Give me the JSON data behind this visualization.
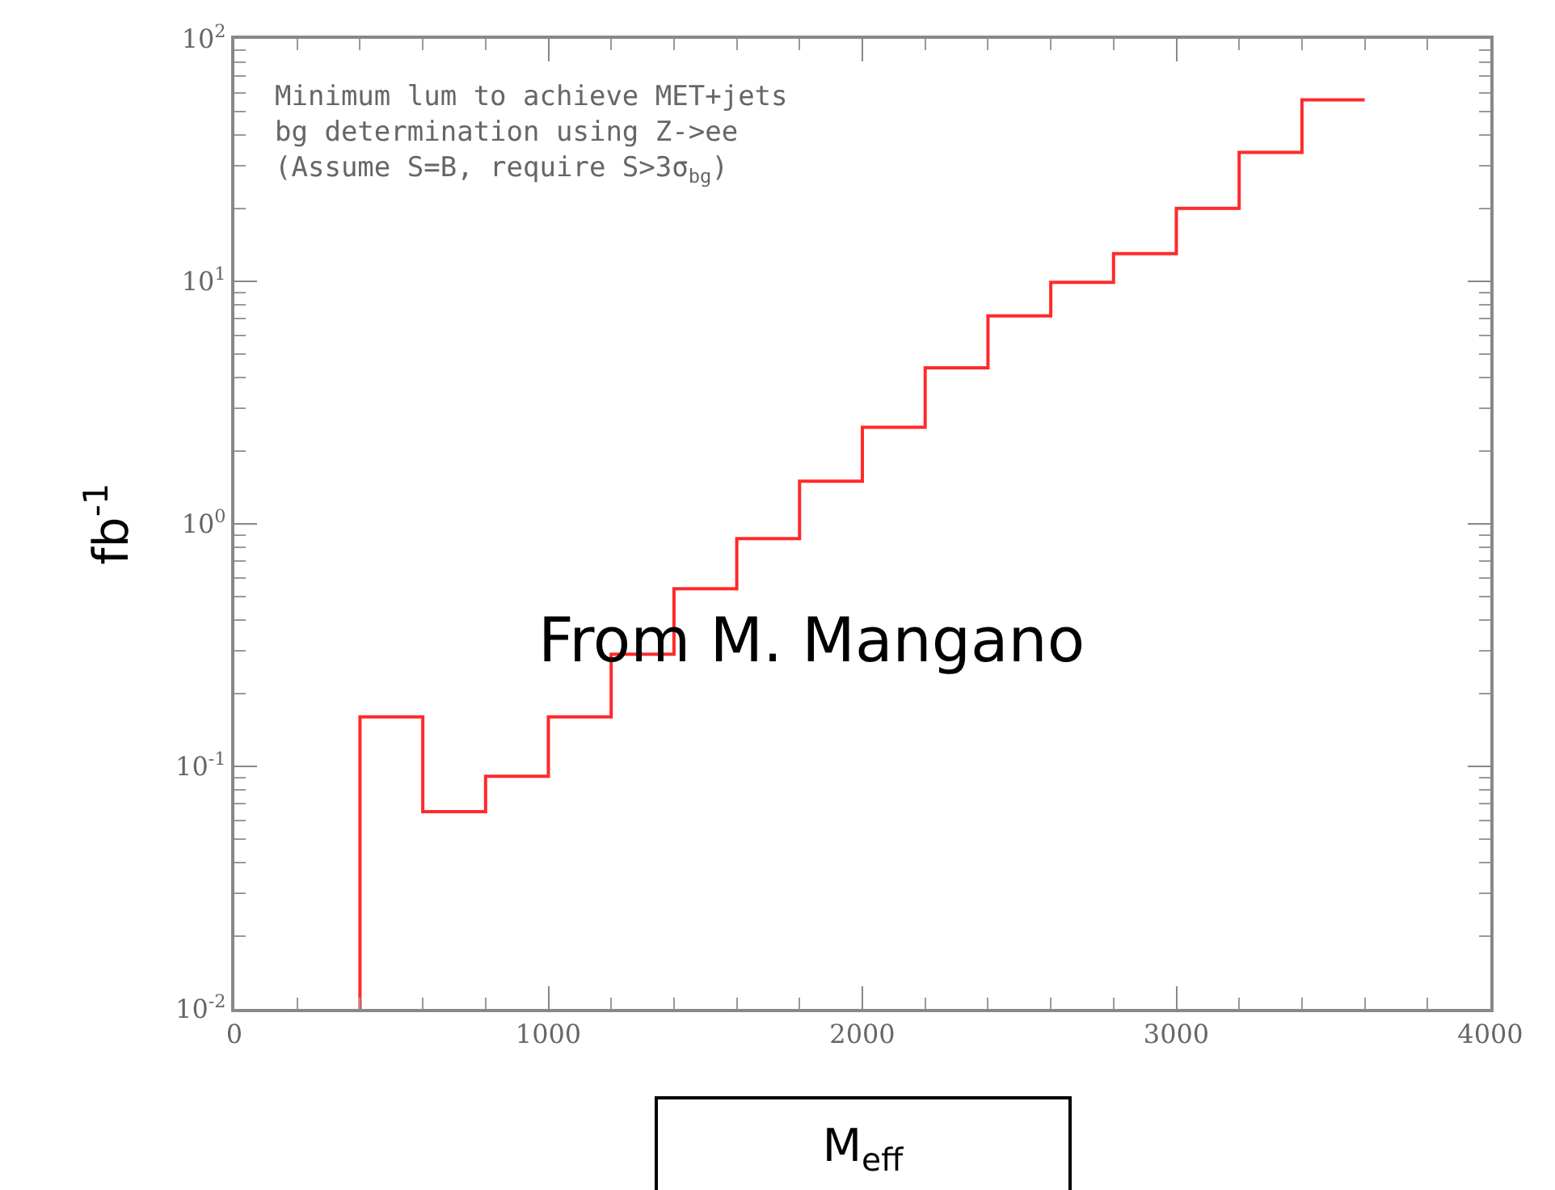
{
  "chart_data": {
    "type": "histogram",
    "xlabel": "M$_{eff}$",
    "ylabel": "fb$^{-1}$",
    "bins": [
      400,
      600,
      800,
      1000,
      1200,
      1400,
      1600,
      1800,
      2000,
      2200,
      2400,
      2600,
      2800,
      3000,
      3200,
      3400,
      3600
    ],
    "values": [
      0.16,
      0.065,
      0.091,
      0.16,
      0.29,
      0.54,
      0.87,
      1.5,
      2.5,
      4.4,
      7.2,
      9.9,
      13,
      20,
      34,
      56
    ],
    "color": "#ff2a2a",
    "log": "y",
    "grid": false,
    "xlim": [
      0,
      4000
    ],
    "xticks": [
      0,
      1000,
      2000,
      3000,
      4000
    ],
    "ylim": [
      0.01,
      100
    ],
    "yticks": [
      {
        "value": 0.01,
        "label": "10$^{-2}$"
      },
      {
        "value": 0.1,
        "label": "10$^{-1}$"
      },
      {
        "value": 1,
        "label": "10$^{0}$"
      },
      {
        "value": 10,
        "label": "10$^{1}$"
      },
      {
        "value": 100,
        "label": "10$^{2}$"
      }
    ],
    "annotations": [
      "Minimum lum to achieve MET+jets\nbg determination using Z->ee\n(Assume S=B, require S>3σ$_{bg}$)",
      "From M. Mangano"
    ]
  }
}
